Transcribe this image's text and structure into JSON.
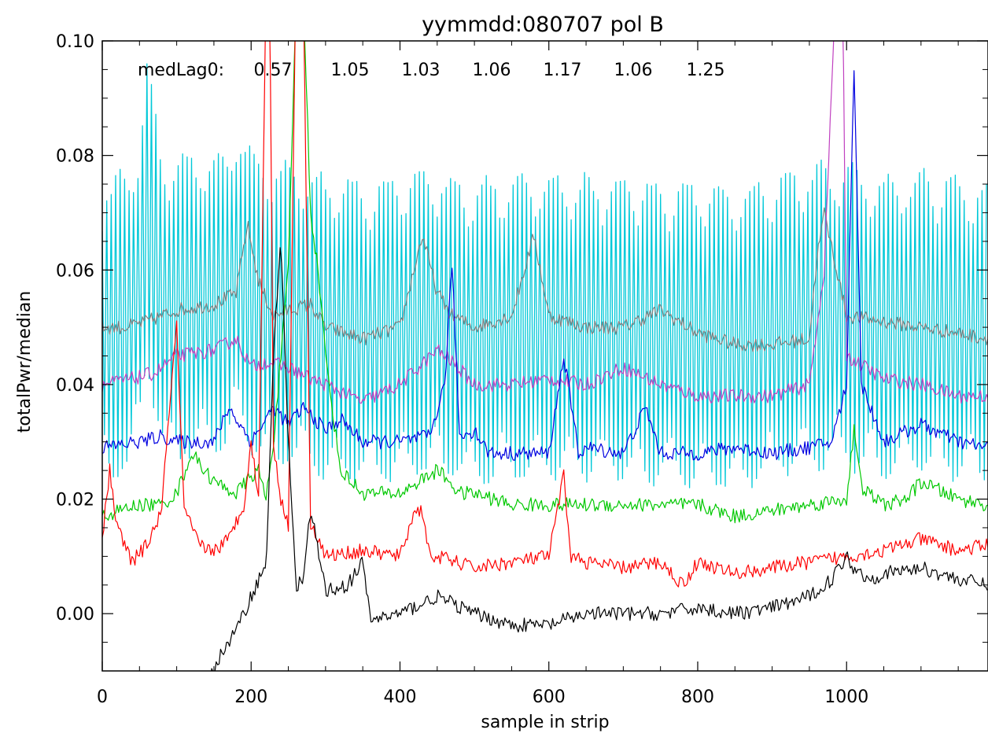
{
  "chart_data": {
    "type": "line",
    "title": "yymmdd:080707 pol B",
    "xlabel": "sample in strip",
    "ylabel": "totalPwr/median",
    "xlim": [
      0,
      1190
    ],
    "ylim": [
      -0.01,
      0.1
    ],
    "xticks": [
      0,
      200,
      400,
      600,
      800,
      1000
    ],
    "xtick_labels": [
      "0",
      "200",
      "400",
      "600",
      "800",
      "1000"
    ],
    "yticks": [
      0.0,
      0.02,
      0.04,
      0.06,
      0.08,
      0.1
    ],
    "ytick_labels": [
      "0.00",
      "0.02",
      "0.04",
      "0.06",
      "0.08",
      "0.10"
    ],
    "grid": false,
    "legend": "none",
    "annotation": {
      "label": "medLag0:",
      "values": [
        "0.57",
        "1.05",
        "1.03",
        "1.06",
        "1.17",
        "1.06",
        "1.25"
      ]
    },
    "series": [
      {
        "color": "#00c8d8",
        "style": "oscillating",
        "osc_amplitude": 0.022,
        "x": [
          0,
          20,
          40,
          50,
          60,
          70,
          80,
          100,
          120,
          150,
          170,
          180,
          200,
          210,
          230,
          250,
          270,
          300,
          350,
          400,
          450,
          500,
          550,
          600,
          650,
          700,
          750,
          800,
          850,
          900,
          950,
          1000,
          1050,
          1100,
          1150,
          1190
        ],
        "y": [
          0.05,
          0.05,
          0.052,
          0.058,
          0.07,
          0.062,
          0.054,
          0.053,
          0.054,
          0.054,
          0.055,
          0.06,
          0.055,
          0.054,
          0.052,
          0.052,
          0.052,
          0.05,
          0.049,
          0.05,
          0.051,
          0.049,
          0.05,
          0.05,
          0.05,
          0.05,
          0.049,
          0.049,
          0.048,
          0.05,
          0.052,
          0.052,
          0.05,
          0.051,
          0.05,
          0.049
        ]
      },
      {
        "color": "#808080",
        "x": [
          0,
          30,
          60,
          100,
          150,
          180,
          195,
          210,
          230,
          250,
          280,
          300,
          350,
          400,
          430,
          450,
          470,
          500,
          550,
          580,
          600,
          650,
          700,
          750,
          800,
          850,
          900,
          950,
          960,
          970,
          1000,
          1050,
          1100,
          1150,
          1190
        ],
        "y": [
          0.05,
          0.05,
          0.051,
          0.053,
          0.054,
          0.056,
          0.068,
          0.058,
          0.052,
          0.053,
          0.054,
          0.05,
          0.048,
          0.05,
          0.066,
          0.056,
          0.052,
          0.05,
          0.052,
          0.066,
          0.052,
          0.05,
          0.05,
          0.053,
          0.049,
          0.047,
          0.047,
          0.048,
          0.062,
          0.07,
          0.052,
          0.051,
          0.05,
          0.049,
          0.048
        ]
      },
      {
        "color": "#c040c0",
        "x": [
          0,
          40,
          70,
          100,
          150,
          180,
          200,
          220,
          250,
          280,
          300,
          350,
          400,
          450,
          470,
          500,
          550,
          600,
          650,
          700,
          750,
          800,
          850,
          900,
          950,
          970,
          985,
          995,
          1000,
          1050,
          1100,
          1150,
          1190
        ],
        "y": [
          0.04,
          0.041,
          0.042,
          0.045,
          0.046,
          0.048,
          0.043,
          0.044,
          0.043,
          0.041,
          0.04,
          0.037,
          0.04,
          0.046,
          0.044,
          0.04,
          0.04,
          0.041,
          0.04,
          0.043,
          0.04,
          0.038,
          0.038,
          0.038,
          0.04,
          0.06,
          0.108,
          0.108,
          0.045,
          0.041,
          0.04,
          0.038,
          0.038
        ]
      },
      {
        "color": "#0000e0",
        "x": [
          0,
          50,
          80,
          100,
          130,
          150,
          170,
          200,
          230,
          250,
          270,
          300,
          320,
          350,
          400,
          440,
          460,
          470,
          480,
          500,
          520,
          550,
          580,
          600,
          620,
          640,
          650,
          700,
          730,
          750,
          800,
          850,
          900,
          950,
          980,
          1000,
          1010,
          1020,
          1050,
          1100,
          1150,
          1190
        ],
        "y": [
          0.029,
          0.03,
          0.031,
          0.03,
          0.03,
          0.03,
          0.036,
          0.03,
          0.036,
          0.033,
          0.036,
          0.032,
          0.034,
          0.03,
          0.03,
          0.031,
          0.04,
          0.061,
          0.031,
          0.032,
          0.028,
          0.028,
          0.028,
          0.028,
          0.045,
          0.028,
          0.029,
          0.028,
          0.036,
          0.028,
          0.028,
          0.029,
          0.028,
          0.029,
          0.03,
          0.04,
          0.096,
          0.04,
          0.03,
          0.033,
          0.03,
          0.029
        ]
      },
      {
        "color": "#00c800",
        "x": [
          0,
          50,
          80,
          100,
          120,
          150,
          180,
          200,
          210,
          220,
          230,
          250,
          260,
          270,
          280,
          290,
          300,
          320,
          350,
          400,
          450,
          460,
          480,
          500,
          550,
          600,
          650,
          700,
          750,
          800,
          850,
          900,
          950,
          1000,
          1010,
          1020,
          1050,
          1080,
          1100,
          1150,
          1190
        ],
        "y": [
          0.017,
          0.019,
          0.019,
          0.021,
          0.028,
          0.023,
          0.021,
          0.024,
          0.025,
          0.02,
          0.03,
          0.06,
          0.105,
          0.108,
          0.07,
          0.06,
          0.045,
          0.025,
          0.021,
          0.021,
          0.025,
          0.024,
          0.021,
          0.021,
          0.019,
          0.019,
          0.019,
          0.019,
          0.019,
          0.019,
          0.017,
          0.018,
          0.019,
          0.02,
          0.032,
          0.022,
          0.019,
          0.02,
          0.023,
          0.02,
          0.019
        ]
      },
      {
        "color": "#ff0000",
        "x": [
          0,
          10,
          20,
          40,
          60,
          80,
          90,
          100,
          110,
          130,
          150,
          170,
          190,
          200,
          210,
          220,
          225,
          230,
          240,
          250,
          260,
          270,
          280,
          300,
          350,
          400,
          420,
          430,
          440,
          450,
          500,
          550,
          600,
          620,
          630,
          650,
          700,
          750,
          780,
          800,
          850,
          900,
          950,
          1000,
          1050,
          1100,
          1150,
          1190
        ],
        "y": [
          0.013,
          0.025,
          0.015,
          0.009,
          0.012,
          0.018,
          0.036,
          0.05,
          0.018,
          0.012,
          0.011,
          0.013,
          0.019,
          0.03,
          0.02,
          0.11,
          0.11,
          0.03,
          0.02,
          0.015,
          0.11,
          0.11,
          0.016,
          0.01,
          0.011,
          0.01,
          0.018,
          0.018,
          0.01,
          0.01,
          0.008,
          0.009,
          0.01,
          0.024,
          0.01,
          0.009,
          0.008,
          0.009,
          0.005,
          0.009,
          0.007,
          0.008,
          0.009,
          0.01,
          0.011,
          0.013,
          0.011,
          0.012
        ]
      },
      {
        "color": "#000000",
        "x": [
          145,
          160,
          180,
          200,
          210,
          220,
          230,
          240,
          250,
          260,
          270,
          280,
          300,
          330,
          350,
          360,
          400,
          450,
          500,
          550,
          600,
          650,
          700,
          750,
          800,
          850,
          900,
          950,
          980,
          1000,
          1010,
          1030,
          1050,
          1100,
          1150,
          1190
        ],
        "y": [
          -0.011,
          -0.007,
          -0.003,
          0.003,
          0.006,
          0.008,
          0.045,
          0.066,
          0.03,
          0.005,
          0.006,
          0.018,
          0.004,
          0.005,
          0.009,
          -0.001,
          0.0,
          0.003,
          0.0,
          -0.002,
          -0.002,
          0.0,
          0.0,
          0.0,
          0.001,
          0.0,
          0.001,
          0.003,
          0.006,
          0.01,
          0.008,
          0.006,
          0.007,
          0.008,
          0.006,
          0.005
        ]
      }
    ]
  }
}
